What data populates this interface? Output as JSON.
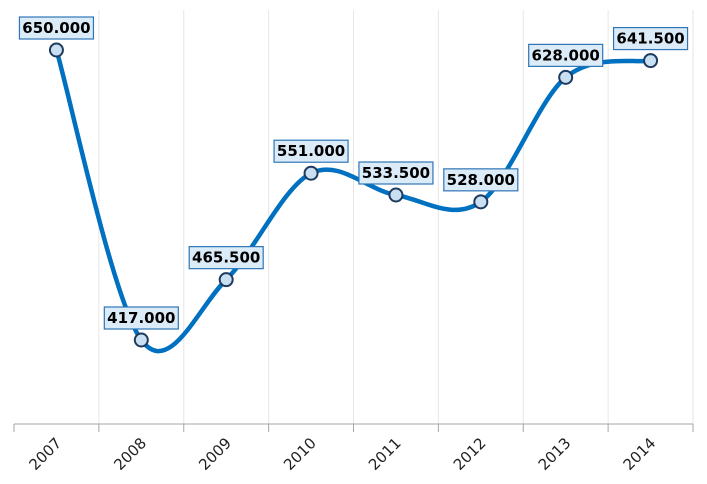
{
  "chart_data": {
    "type": "line",
    "categories": [
      "2007",
      "2008",
      "2009",
      "2010",
      "2011",
      "2012",
      "2013",
      "2014"
    ],
    "values": [
      650.0,
      417.0,
      465.5,
      551.0,
      533.5,
      528.0,
      628.0,
      641.5
    ],
    "value_labels": [
      "650.000",
      "417.000",
      "465.500",
      "551.000",
      "533.500",
      "528.000",
      "628.000",
      "641.500"
    ],
    "title": "",
    "xlabel": "",
    "ylabel": "",
    "ylim": [
      300,
      675
    ],
    "grid": "vertical",
    "smooth": true,
    "line_color": "#0070c0",
    "marker_fill": "#c9dff2",
    "label_box_fill": "#dcebf8",
    "label_box_border": "#2e75b6"
  }
}
